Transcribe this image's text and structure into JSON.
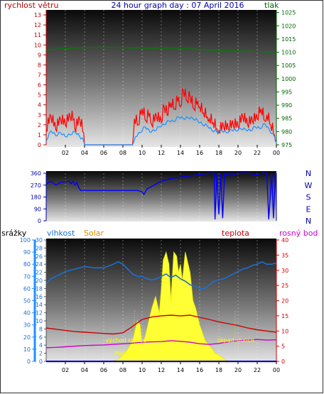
{
  "header": {
    "title": "24 hour graph day : 07 April 2016",
    "left_label": "rychlost větru",
    "right_label": "tlak"
  },
  "mid_labels": {
    "srazky": "srážky",
    "vlhkost": "vlhkost",
    "solar": "Solar",
    "teplota": "teplota",
    "rosny_bod": "rosný bod"
  },
  "annotations": {
    "vychod": "východ slunce",
    "zapad": "západ slunce",
    "moon": "Moon R"
  },
  "colors": {
    "wind": "#ff0000",
    "gust_avg": "#1e90ff",
    "pressure": "#008000",
    "direction": "#0000ff",
    "humidity": "#1e6fd0",
    "temperature": "#cc0000",
    "dewpoint": "#cc00cc",
    "solar": "#ffff33",
    "rain_axis": "#1e90ff",
    "solar_axis": "#cc6600"
  },
  "chart_data": [
    {
      "type": "line",
      "name": "wind-pressure",
      "x_ticks": [
        "02",
        "04",
        "06",
        "08",
        "10",
        "12",
        "14",
        "16",
        "18",
        "20",
        "22",
        "00"
      ],
      "left_axis": {
        "label": "rychlost větru",
        "ticks": [
          0,
          1,
          2,
          3,
          4,
          5,
          6,
          7,
          8,
          9,
          10,
          11,
          12,
          13
        ]
      },
      "right_axis": {
        "label": "tlak",
        "ticks": [
          975,
          980,
          985,
          990,
          995,
          1000,
          1005,
          1010,
          1015,
          1020,
          1025
        ]
      },
      "ylim_left": [
        0,
        13.5
      ],
      "ylim_right": [
        975,
        1026
      ],
      "series": [
        {
          "key": "wind_gust",
          "hours": [
            0,
            0.5,
            1,
            1.5,
            2,
            2.5,
            2.9,
            3,
            3.5,
            3.9,
            4,
            9,
            9.2,
            9.6,
            10,
            10.4,
            10.8,
            11,
            11.5,
            12,
            12.3,
            12.6,
            13,
            13.4,
            13.8,
            14,
            14.3,
            14.7,
            15,
            15.4,
            15.8,
            16,
            16.4,
            16.8,
            17,
            17.4,
            17.8,
            18,
            18.5,
            19,
            19.5,
            20,
            20.5,
            21,
            21.5,
            22,
            22.4,
            22.8,
            23,
            23.4,
            23.8,
            24
          ],
          "values": [
            1.5,
            2.8,
            1.5,
            2.5,
            2.0,
            2.8,
            2.6,
            1.5,
            2.5,
            1.2,
            0,
            0,
            2.6,
            2.0,
            3.6,
            2.4,
            3.2,
            2.0,
            2.8,
            2.2,
            3.8,
            3.0,
            4.2,
            3.6,
            4.8,
            3.8,
            5.4,
            4.4,
            4.8,
            3.6,
            4.4,
            3.8,
            3.2,
            2.8,
            2.6,
            2.2,
            1.6,
            1.4,
            1.8,
            1.6,
            2.0,
            1.8,
            2.8,
            2.0,
            2.4,
            2.6,
            3.6,
            2.4,
            3.0,
            2.0,
            1.0,
            0.4
          ]
        },
        {
          "key": "wind_avg",
          "hours": [
            0,
            0.5,
            1,
            1.5,
            2,
            2.5,
            3,
            3.5,
            3.9,
            4,
            9,
            9.3,
            9.8,
            10.3,
            10.8,
            11.3,
            11.8,
            12.3,
            12.8,
            13.3,
            13.8,
            14.3,
            14.8,
            15.3,
            15.8,
            16.3,
            16.8,
            17.3,
            17.8,
            18.3,
            18.8,
            19.3,
            19.8,
            20.3,
            20.8,
            21.3,
            21.8,
            22.3,
            22.8,
            23.3,
            23.8,
            24
          ],
          "values": [
            0.4,
            1.4,
            0.9,
            1.2,
            0.8,
            1.0,
            1.3,
            0.8,
            0.4,
            0,
            0,
            0.8,
            1.2,
            1.8,
            1.3,
            1.4,
            1.8,
            2.0,
            2.4,
            2.3,
            2.8,
            2.6,
            2.7,
            2.6,
            2.4,
            2.0,
            1.9,
            1.4,
            1.3,
            1.4,
            1.2,
            1.5,
            1.4,
            1.6,
            1.5,
            1.4,
            1.8,
            1.6,
            2.1,
            1.4,
            0.8,
            0.2
          ]
        },
        {
          "key": "pressure",
          "hours": [
            0,
            1,
            2,
            3,
            4,
            5,
            6,
            7,
            8,
            9,
            10,
            11,
            12,
            13,
            14,
            15,
            16,
            17,
            18,
            19,
            20,
            21,
            22,
            23,
            24
          ],
          "values": [
            1010.8,
            1011.2,
            1011.4,
            1011.6,
            1011.7,
            1011.8,
            1011.8,
            1011.8,
            1011.7,
            1011.6,
            1011.6,
            1011.5,
            1011.5,
            1011.6,
            1011.5,
            1011.3,
            1011.1,
            1010.9,
            1010.7,
            1010.6,
            1010.5,
            1010.4,
            1010.3,
            1010.1,
            1010.0
          ]
        }
      ]
    },
    {
      "type": "line",
      "name": "wind-direction",
      "x_ticks": [],
      "left_axis": {
        "ticks": [
          0,
          90,
          180,
          270,
          360
        ]
      },
      "right_axis": {
        "ticks": [
          "N",
          "E",
          "S",
          "W",
          "N"
        ]
      },
      "ylim": [
        0,
        360
      ],
      "series": [
        {
          "key": "direction",
          "hours": [
            0,
            0.5,
            1,
            1.5,
            2,
            2.4,
            2.6,
            2.8,
            3.0,
            3.2,
            3.4,
            3.6,
            4,
            5,
            6,
            7,
            8,
            9,
            9.5,
            10,
            10.2,
            10.5,
            11,
            11.5,
            12,
            13,
            14,
            15,
            16,
            17,
            17.5,
            17.6,
            17.8,
            18.0,
            18.2,
            18.4,
            18.6,
            18.8,
            19,
            19.2,
            19.4,
            19.6,
            20,
            21,
            22,
            22.5,
            23,
            23.2,
            23.5,
            23.7,
            23.9,
            24
          ],
          "values": [
            280,
            300,
            270,
            290,
            295,
            300,
            280,
            300,
            270,
            290,
            250,
            230,
            230,
            230,
            230,
            230,
            230,
            230,
            230,
            220,
            200,
            240,
            260,
            280,
            300,
            320,
            330,
            340,
            350,
            360,
            360,
            10,
            360,
            50,
            360,
            20,
            360,
            350,
            360,
            340,
            360,
            350,
            360,
            360,
            350,
            360,
            360,
            10,
            360,
            20,
            360,
            350
          ]
        }
      ]
    },
    {
      "type": "line",
      "name": "humidity-temperature-solar",
      "x_ticks": [
        "02",
        "04",
        "06",
        "08",
        "10",
        "12",
        "14",
        "16",
        "18",
        "20",
        "22",
        "00"
      ],
      "axes": {
        "rain": {
          "label": "srážky",
          "ticks": [
            0,
            10,
            20,
            30,
            40,
            50,
            60,
            70,
            80,
            90,
            100
          ]
        },
        "humidity": {
          "label": "vlhkost",
          "ticks": [
            0,
            2,
            4,
            6,
            8,
            10,
            12,
            14,
            16,
            18,
            20,
            22,
            24,
            26,
            28,
            30
          ]
        },
        "temperature": {
          "label": "teplota",
          "ticks": [
            0,
            5,
            10,
            15,
            20,
            25,
            30,
            35,
            40
          ]
        }
      },
      "series": [
        {
          "key": "humidity",
          "hours": [
            0,
            0.5,
            1,
            1.5,
            2,
            3,
            4,
            5,
            6,
            7,
            7.5,
            8,
            8.5,
            9,
            9.5,
            10,
            10.5,
            11,
            11.5,
            12,
            12.5,
            13,
            13.5,
            14,
            14.5,
            15,
            15.5,
            16,
            16.5,
            17,
            17.5,
            18,
            18.5,
            19,
            19.5,
            20,
            20.5,
            21,
            21.5,
            22,
            22.5,
            23,
            23.5,
            24
          ],
          "values": [
            64,
            68,
            70,
            72,
            74,
            76,
            78,
            77,
            77,
            80,
            82,
            80,
            76,
            72,
            70,
            70,
            68,
            67,
            68,
            70,
            72,
            69,
            71,
            68,
            66,
            63,
            62,
            60,
            60,
            63,
            66,
            67,
            68,
            70,
            72,
            74,
            76,
            77,
            79,
            80,
            82,
            80,
            80,
            81
          ]
        },
        {
          "key": "temperature",
          "hours": [
            0,
            1,
            2,
            3,
            4,
            5,
            6,
            7,
            8,
            9,
            10,
            11,
            12,
            13,
            14,
            15,
            16,
            17,
            18,
            19,
            20,
            21,
            22,
            23,
            24
          ],
          "values": [
            11.0,
            10.6,
            10.2,
            9.8,
            9.6,
            9.4,
            9.2,
            9.0,
            9.4,
            11.5,
            13.8,
            14.6,
            15.0,
            15.2,
            15.0,
            15.2,
            14.5,
            13.8,
            13.0,
            12.4,
            11.8,
            11.0,
            10.4,
            10.0,
            9.6
          ]
        },
        {
          "key": "dewpoint",
          "hours": [
            0,
            1,
            2,
            3,
            4,
            5,
            6,
            7,
            8,
            9,
            10,
            11,
            12,
            13,
            14,
            15,
            16,
            17,
            18,
            19,
            20,
            21,
            22,
            23,
            24
          ],
          "values": [
            4.5,
            4.6,
            4.8,
            5.0,
            5.2,
            5.3,
            5.4,
            5.6,
            5.8,
            6.0,
            6.3,
            6.4,
            6.5,
            6.8,
            6.6,
            6.3,
            5.8,
            5.6,
            5.9,
            6.4,
            6.8,
            7.0,
            7.2,
            7.0,
            7.1
          ]
        },
        {
          "key": "solar",
          "hours": [
            6.8,
            7.5,
            8,
            8.5,
            9,
            9.2,
            9.5,
            9.8,
            10,
            10.3,
            10.6,
            11,
            11.4,
            11.8,
            12,
            12.2,
            12.5,
            12.8,
            13,
            13.3,
            13.6,
            13.8,
            14,
            14.2,
            14.5,
            14.8,
            15,
            15.3,
            15.6,
            16,
            16.3,
            16.6,
            17,
            17.3,
            17.6,
            18,
            18.3,
            18.6,
            19
          ],
          "values": [
            0,
            0.5,
            1.5,
            3,
            5,
            7,
            10,
            9,
            4,
            6,
            9,
            13,
            16,
            12,
            18,
            25,
            27,
            24,
            15,
            27,
            26,
            22,
            24,
            20,
            27,
            24,
            22,
            15,
            13,
            9,
            7,
            5,
            4,
            3,
            2,
            1.5,
            1,
            0.5,
            0
          ]
        }
      ]
    }
  ]
}
